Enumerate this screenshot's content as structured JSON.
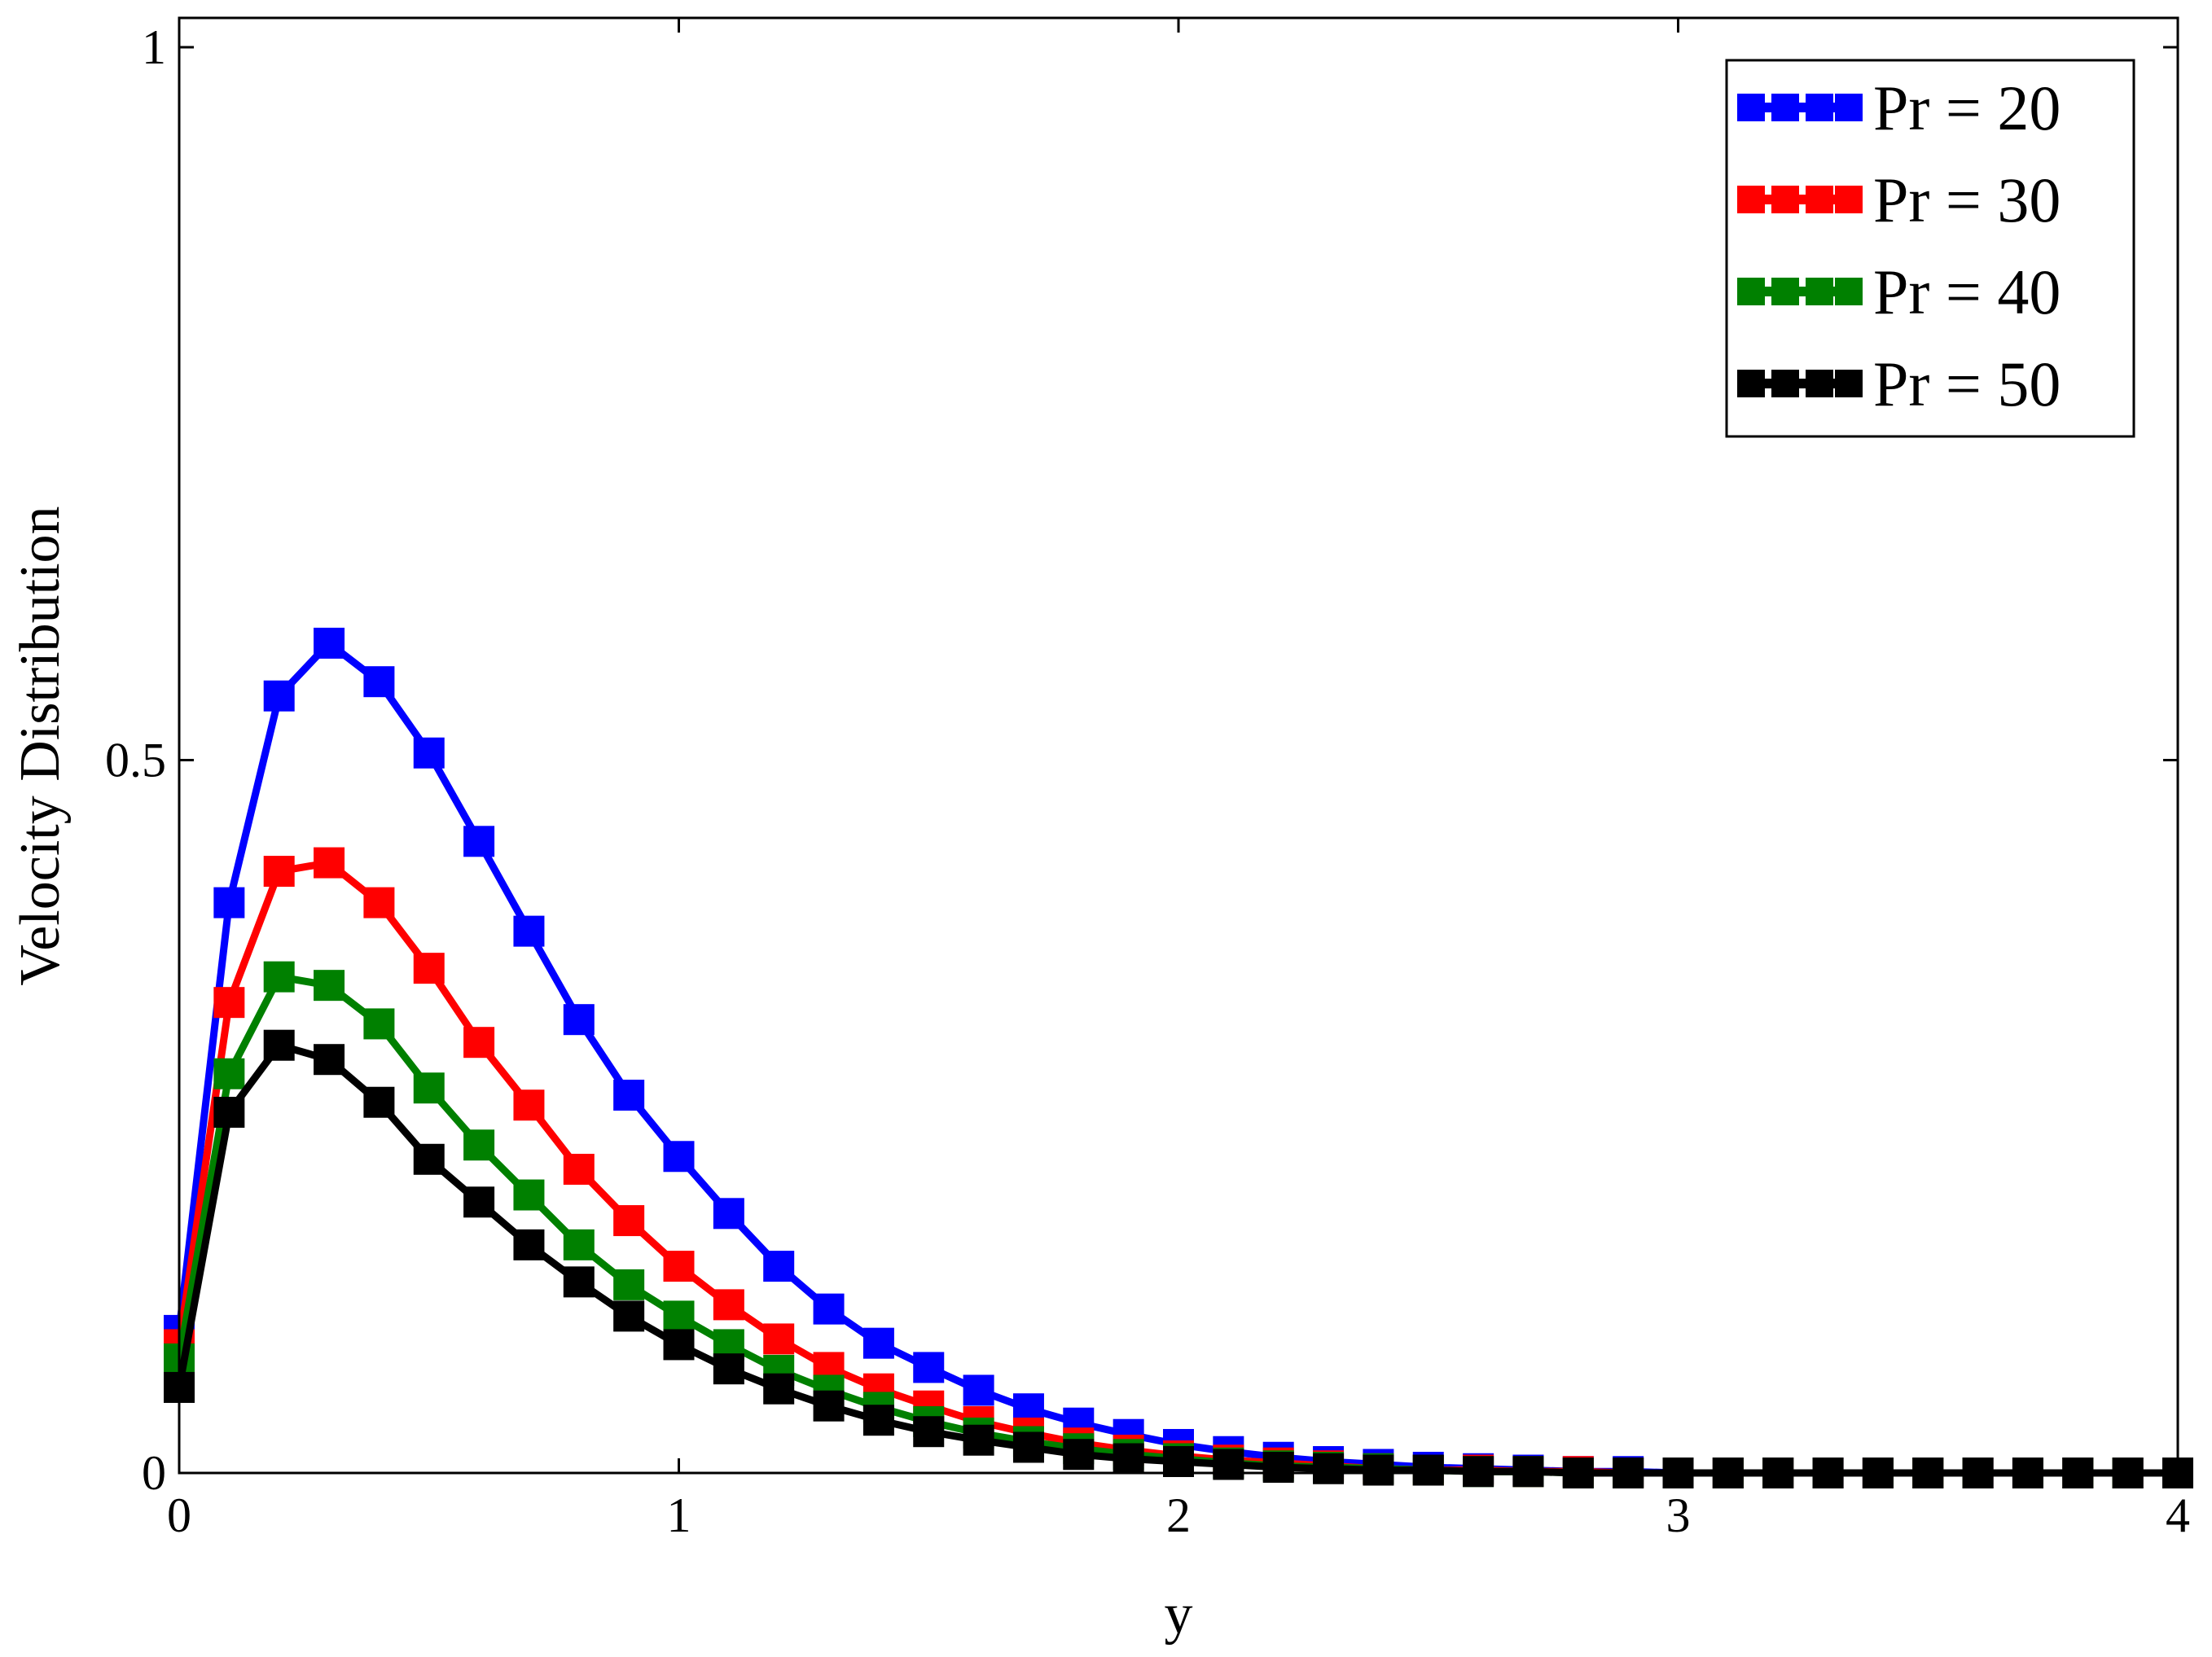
{
  "chart_data": {
    "type": "line",
    "title": "",
    "xlabel": "y",
    "ylabel": "Velocity  Distribution",
    "xlim": [
      0,
      4
    ],
    "ylim": [
      0,
      1
    ],
    "x_ticks": [
      "0",
      "1",
      "2",
      "3",
      "4"
    ],
    "y_ticks": [
      "0",
      "0.5",
      "1"
    ],
    "grid": false,
    "legend_position": "top-right",
    "marker": "square",
    "x": [
      0,
      0.1,
      0.2,
      0.3,
      0.4,
      0.5,
      0.6,
      0.7,
      0.8,
      0.9,
      1.0,
      1.1,
      1.2,
      1.3,
      1.4,
      1.5,
      1.6,
      1.7,
      1.8,
      1.9,
      2.0,
      2.1,
      2.2,
      2.3,
      2.4,
      2.5,
      2.6,
      2.7,
      2.8,
      2.9,
      3.0,
      3.1,
      3.2,
      3.3,
      3.4,
      3.5,
      3.6,
      3.7,
      3.8,
      3.9,
      4.0
    ],
    "series": [
      {
        "name": "Pr = 20",
        "color": "#0000ff",
        "values": [
          0.1,
          0.4,
          0.545,
          0.582,
          0.555,
          0.505,
          0.443,
          0.38,
          0.318,
          0.265,
          0.222,
          0.182,
          0.145,
          0.115,
          0.091,
          0.074,
          0.058,
          0.045,
          0.035,
          0.027,
          0.02,
          0.015,
          0.011,
          0.008,
          0.006,
          0.004,
          0.003,
          0.002,
          0.001,
          0.001,
          0.0,
          0.0,
          0.0,
          0.0,
          0.0,
          0.0,
          0.0,
          0.0,
          0.0,
          0.0,
          0.0
        ]
      },
      {
        "name": "Pr = 30",
        "color": "#ff0000",
        "values": [
          0.09,
          0.33,
          0.422,
          0.428,
          0.4,
          0.354,
          0.302,
          0.258,
          0.213,
          0.177,
          0.145,
          0.118,
          0.094,
          0.074,
          0.059,
          0.047,
          0.036,
          0.028,
          0.021,
          0.016,
          0.012,
          0.009,
          0.007,
          0.005,
          0.003,
          0.002,
          0.002,
          0.001,
          0.001,
          0.0,
          0.0,
          0.0,
          0.0,
          0.0,
          0.0,
          0.0,
          0.0,
          0.0,
          0.0,
          0.0,
          0.0
        ]
      },
      {
        "name": "Pr = 40",
        "color": "#008000",
        "values": [
          0.08,
          0.28,
          0.348,
          0.342,
          0.315,
          0.27,
          0.23,
          0.195,
          0.16,
          0.132,
          0.11,
          0.09,
          0.072,
          0.058,
          0.046,
          0.036,
          0.028,
          0.022,
          0.017,
          0.013,
          0.01,
          0.007,
          0.005,
          0.004,
          0.003,
          0.002,
          0.001,
          0.001,
          0.0,
          0.0,
          0.0,
          0.0,
          0.0,
          0.0,
          0.0,
          0.0,
          0.0,
          0.0,
          0.0,
          0.0,
          0.0
        ]
      },
      {
        "name": "Pr = 50",
        "color": "#000000",
        "values": [
          0.06,
          0.253,
          0.3,
          0.29,
          0.26,
          0.22,
          0.19,
          0.16,
          0.134,
          0.11,
          0.09,
          0.073,
          0.059,
          0.047,
          0.037,
          0.029,
          0.023,
          0.018,
          0.013,
          0.01,
          0.008,
          0.006,
          0.004,
          0.003,
          0.002,
          0.002,
          0.001,
          0.001,
          0.0,
          0.0,
          0.0,
          0.0,
          0.0,
          0.0,
          0.0,
          0.0,
          0.0,
          0.0,
          0.0,
          0.0,
          0.0
        ]
      }
    ]
  }
}
